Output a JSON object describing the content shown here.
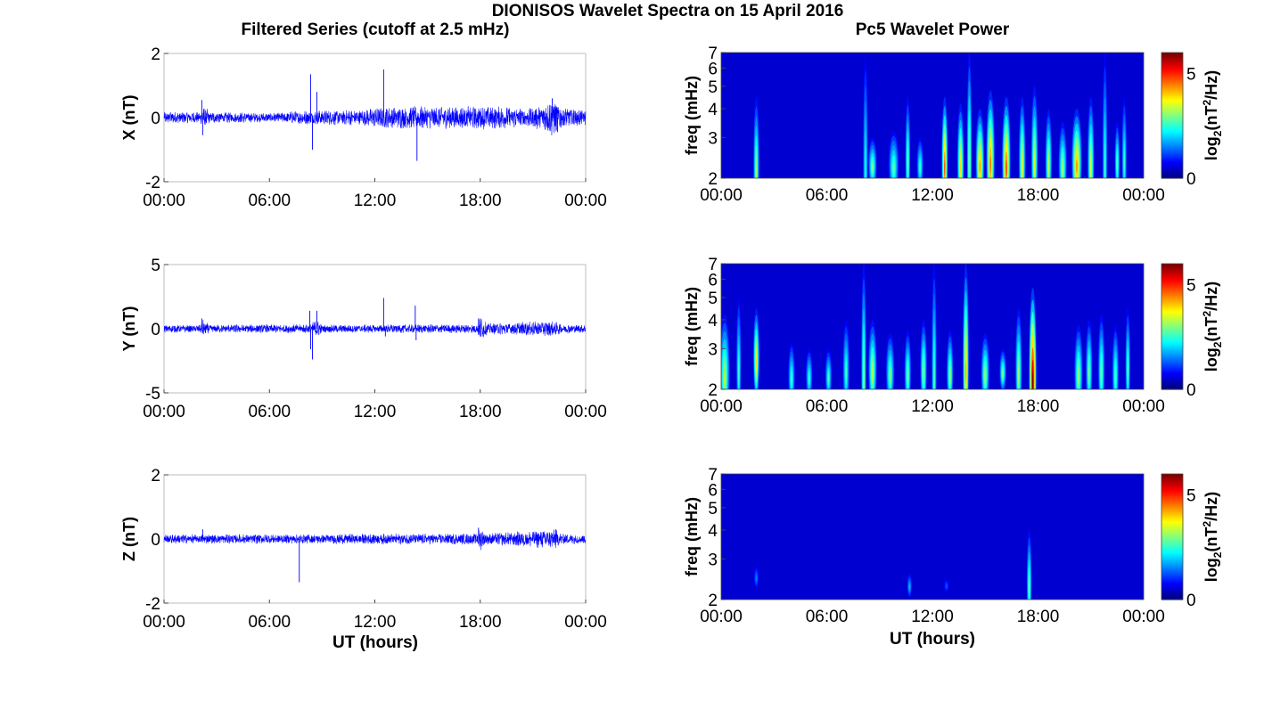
{
  "chart_data": {
    "title": "DIONISOS Wavelet Spectra on 15 April 2016",
    "left_title": "Filtered Series (cutoff at 2.5 mHz)",
    "right_title": "Pc5 Wavelet Power",
    "xlabel": "UT (hours)",
    "x_ticks": [
      "00:00",
      "06:00",
      "12:00",
      "18:00",
      "00:00"
    ],
    "xlim_hours": [
      0,
      24
    ],
    "series_color": "#0000ff",
    "timeseries": [
      {
        "type": "line",
        "ylabel": "X (nT)",
        "ylim": [
          -2,
          2
        ],
        "yticks": [
          "2",
          "0",
          "-2"
        ],
        "noise_envelope": [
          {
            "t": 0,
            "a": 0.15
          },
          {
            "t": 2.1,
            "a": 0.15
          },
          {
            "t": 2.2,
            "a": 0.35
          },
          {
            "t": 2.6,
            "a": 0.15
          },
          {
            "t": 6,
            "a": 0.12
          },
          {
            "t": 8,
            "a": 0.18
          },
          {
            "t": 11,
            "a": 0.2
          },
          {
            "t": 13,
            "a": 0.28
          },
          {
            "t": 18,
            "a": 0.3
          },
          {
            "t": 21,
            "a": 0.25
          },
          {
            "t": 22.2,
            "a": 0.5
          },
          {
            "t": 22.6,
            "a": 0.3
          },
          {
            "t": 24,
            "a": 0.2
          }
        ],
        "spikes": [
          {
            "t": 2.15,
            "v": 0.55
          },
          {
            "t": 2.2,
            "v": -0.55
          },
          {
            "t": 8.35,
            "v": 1.35
          },
          {
            "t": 8.45,
            "v": -1.0
          },
          {
            "t": 8.7,
            "v": 0.8
          },
          {
            "t": 12.5,
            "v": 1.5
          },
          {
            "t": 14.4,
            "v": -1.35
          },
          {
            "t": 22.1,
            "v": 0.6
          },
          {
            "t": 22.4,
            "v": -0.45
          }
        ]
      },
      {
        "type": "line",
        "ylabel": "Y (nT)",
        "ylim": [
          -5,
          5
        ],
        "yticks": [
          "5",
          "0",
          "-5"
        ],
        "noise_envelope": [
          {
            "t": 0,
            "a": 0.25
          },
          {
            "t": 2.1,
            "a": 0.25
          },
          {
            "t": 2.2,
            "a": 0.6
          },
          {
            "t": 2.6,
            "a": 0.25
          },
          {
            "t": 8.3,
            "a": 0.3
          },
          {
            "t": 8.7,
            "a": 0.6
          },
          {
            "t": 9,
            "a": 0.25
          },
          {
            "t": 17.8,
            "a": 0.3
          },
          {
            "t": 18,
            "a": 0.8
          },
          {
            "t": 18.4,
            "a": 0.35
          },
          {
            "t": 22.2,
            "a": 0.5
          },
          {
            "t": 22.6,
            "a": 0.3
          },
          {
            "t": 24,
            "a": 0.25
          }
        ],
        "spikes": [
          {
            "t": 2.15,
            "v": 0.8
          },
          {
            "t": 8.3,
            "v": 1.4
          },
          {
            "t": 8.35,
            "v": -1.6
          },
          {
            "t": 8.45,
            "v": -2.4
          },
          {
            "t": 8.7,
            "v": 1.4
          },
          {
            "t": 12.5,
            "v": 2.4
          },
          {
            "t": 12.6,
            "v": -0.6
          },
          {
            "t": 14.3,
            "v": 1.8
          },
          {
            "t": 14.35,
            "v": -0.9
          },
          {
            "t": 17.9,
            "v": 0.8
          },
          {
            "t": 18.0,
            "v": -0.6
          }
        ]
      },
      {
        "type": "line",
        "ylabel": "Z (nT)",
        "ylim": [
          -2,
          2
        ],
        "yticks": [
          "2",
          "0",
          "-2"
        ],
        "noise_envelope": [
          {
            "t": 0,
            "a": 0.12
          },
          {
            "t": 7.5,
            "a": 0.12
          },
          {
            "t": 12,
            "a": 0.14
          },
          {
            "t": 17.8,
            "a": 0.14
          },
          {
            "t": 18,
            "a": 0.3
          },
          {
            "t": 18.3,
            "a": 0.15
          },
          {
            "t": 22.3,
            "a": 0.25
          },
          {
            "t": 22.6,
            "a": 0.14
          },
          {
            "t": 24,
            "a": 0.12
          }
        ],
        "spikes": [
          {
            "t": 7.7,
            "v": -1.35
          },
          {
            "t": 2.2,
            "v": 0.3
          },
          {
            "t": 17.9,
            "v": 0.35
          },
          {
            "t": 22.3,
            "v": 0.3
          }
        ]
      }
    ],
    "spectra": [
      {
        "type": "heatmap",
        "ylabel": "freq (mHz)",
        "ylim_mHz": [
          2,
          7
        ],
        "y_scale": "log",
        "yticks": [
          "7",
          "6",
          "5",
          "4",
          "3",
          "2"
        ],
        "colorbar_label": "log2(nT2/Hz)",
        "colorbar_ticks": [
          "5",
          "0"
        ],
        "clim": [
          0,
          6
        ],
        "blobs": [
          {
            "t": 2.0,
            "f": 2.3,
            "w": 0.18,
            "h": 4.5,
            "p": 3.0
          },
          {
            "t": 8.2,
            "f": 2.4,
            "w": 0.15,
            "h": 6.8,
            "p": 2.2
          },
          {
            "t": 8.6,
            "f": 2.3,
            "w": 0.25,
            "h": 3.0,
            "p": 2.8
          },
          {
            "t": 9.8,
            "f": 2.3,
            "w": 0.3,
            "h": 3.2,
            "p": 2.6
          },
          {
            "t": 10.6,
            "f": 2.5,
            "w": 0.15,
            "h": 4.5,
            "p": 2.8
          },
          {
            "t": 11.3,
            "f": 2.3,
            "w": 0.2,
            "h": 3.0,
            "p": 2.4
          },
          {
            "t": 12.7,
            "f": 2.4,
            "w": 0.18,
            "h": 4.5,
            "p": 4.8
          },
          {
            "t": 13.6,
            "f": 2.4,
            "w": 0.2,
            "h": 4.2,
            "p": 3.8
          },
          {
            "t": 14.1,
            "f": 2.6,
            "w": 0.15,
            "h": 7.0,
            "p": 3.2
          },
          {
            "t": 14.7,
            "f": 2.4,
            "w": 0.25,
            "h": 4.0,
            "p": 4.2
          },
          {
            "t": 15.3,
            "f": 2.5,
            "w": 0.25,
            "h": 4.8,
            "p": 4.5
          },
          {
            "t": 16.2,
            "f": 2.4,
            "w": 0.25,
            "h": 4.5,
            "p": 4.8
          },
          {
            "t": 17.1,
            "f": 2.4,
            "w": 0.2,
            "h": 4.5,
            "p": 3.6
          },
          {
            "t": 17.8,
            "f": 2.5,
            "w": 0.2,
            "h": 5.0,
            "p": 3.4
          },
          {
            "t": 18.6,
            "f": 2.4,
            "w": 0.2,
            "h": 4.0,
            "p": 3.2
          },
          {
            "t": 19.4,
            "f": 2.3,
            "w": 0.25,
            "h": 3.5,
            "p": 3.0
          },
          {
            "t": 20.2,
            "f": 2.4,
            "w": 0.3,
            "h": 4.0,
            "p": 4.3
          },
          {
            "t": 21.0,
            "f": 2.4,
            "w": 0.2,
            "h": 4.5,
            "p": 3.4
          },
          {
            "t": 21.8,
            "f": 2.5,
            "w": 0.12,
            "h": 7.0,
            "p": 2.4
          },
          {
            "t": 22.5,
            "f": 2.4,
            "w": 0.15,
            "h": 3.5,
            "p": 2.8
          },
          {
            "t": 22.9,
            "f": 2.5,
            "w": 0.12,
            "h": 4.5,
            "p": 2.4
          }
        ]
      },
      {
        "type": "heatmap",
        "ylabel": "freq (mHz)",
        "ylim_mHz": [
          2,
          7
        ],
        "y_scale": "log",
        "yticks": [
          "7",
          "6",
          "5",
          "4",
          "3",
          "2"
        ],
        "colorbar_label": "log2(nT2/Hz)",
        "colorbar_ticks": [
          "5",
          "0"
        ],
        "clim": [
          0,
          6
        ],
        "blobs": [
          {
            "t": 0.2,
            "f": 2.4,
            "w": 0.3,
            "h": 4.2,
            "p": 3.2
          },
          {
            "t": 1.0,
            "f": 2.6,
            "w": 0.15,
            "h": 5.0,
            "p": 2.4
          },
          {
            "t": 2.0,
            "f": 2.8,
            "w": 0.18,
            "h": 4.5,
            "p": 3.8
          },
          {
            "t": 4.0,
            "f": 2.3,
            "w": 0.2,
            "h": 3.2,
            "p": 2.4
          },
          {
            "t": 5.0,
            "f": 2.3,
            "w": 0.2,
            "h": 3.0,
            "p": 2.3
          },
          {
            "t": 6.1,
            "f": 2.3,
            "w": 0.2,
            "h": 3.0,
            "p": 2.4
          },
          {
            "t": 7.1,
            "f": 2.5,
            "w": 0.2,
            "h": 4.0,
            "p": 2.4
          },
          {
            "t": 8.1,
            "f": 2.5,
            "w": 0.12,
            "h": 7.0,
            "p": 3.0
          },
          {
            "t": 8.6,
            "f": 2.5,
            "w": 0.25,
            "h": 4.0,
            "p": 3.2
          },
          {
            "t": 9.6,
            "f": 2.4,
            "w": 0.25,
            "h": 3.5,
            "p": 2.8
          },
          {
            "t": 10.6,
            "f": 2.4,
            "w": 0.2,
            "h": 3.6,
            "p": 2.8
          },
          {
            "t": 11.5,
            "f": 2.5,
            "w": 0.2,
            "h": 4.0,
            "p": 3.0
          },
          {
            "t": 12.1,
            "f": 2.5,
            "w": 0.1,
            "h": 7.0,
            "p": 2.6
          },
          {
            "t": 13.0,
            "f": 2.4,
            "w": 0.2,
            "h": 3.6,
            "p": 3.0
          },
          {
            "t": 13.9,
            "f": 2.7,
            "w": 0.18,
            "h": 7.0,
            "p": 4.2
          },
          {
            "t": 15.0,
            "f": 2.4,
            "w": 0.25,
            "h": 3.5,
            "p": 3.0
          },
          {
            "t": 16.0,
            "f": 2.4,
            "w": 0.2,
            "h": 3.0,
            "p": 2.8
          },
          {
            "t": 16.9,
            "f": 2.5,
            "w": 0.2,
            "h": 4.5,
            "p": 3.0
          },
          {
            "t": 17.7,
            "f": 2.4,
            "w": 0.22,
            "h": 5.5,
            "p": 6.0
          },
          {
            "t": 20.3,
            "f": 2.4,
            "w": 0.25,
            "h": 3.8,
            "p": 3.0
          },
          {
            "t": 20.9,
            "f": 2.5,
            "w": 0.2,
            "h": 4.0,
            "p": 2.8
          },
          {
            "t": 21.6,
            "f": 2.5,
            "w": 0.2,
            "h": 4.2,
            "p": 2.8
          },
          {
            "t": 22.4,
            "f": 2.4,
            "w": 0.2,
            "h": 3.8,
            "p": 2.6
          },
          {
            "t": 23.1,
            "f": 2.6,
            "w": 0.15,
            "h": 4.5,
            "p": 2.6
          }
        ]
      },
      {
        "type": "heatmap",
        "ylabel": "freq (mHz)",
        "ylim_mHz": [
          2,
          7
        ],
        "y_scale": "log",
        "yticks": [
          "7",
          "6",
          "5",
          "4",
          "3",
          "2"
        ],
        "colorbar_label": "log2(nT2/Hz)",
        "colorbar_ticks": [
          "5",
          "0"
        ],
        "clim": [
          0,
          6
        ],
        "blobs": [
          {
            "t": 2.0,
            "f": 2.5,
            "w": 0.12,
            "h": 2.8,
            "p": 1.2
          },
          {
            "t": 10.7,
            "f": 2.3,
            "w": 0.15,
            "h": 2.6,
            "p": 1.6
          },
          {
            "t": 12.8,
            "f": 2.3,
            "w": 0.12,
            "h": 2.4,
            "p": 0.9
          },
          {
            "t": 17.5,
            "f": 2.4,
            "w": 0.15,
            "h": 4.0,
            "p": 2.8
          }
        ]
      }
    ]
  }
}
